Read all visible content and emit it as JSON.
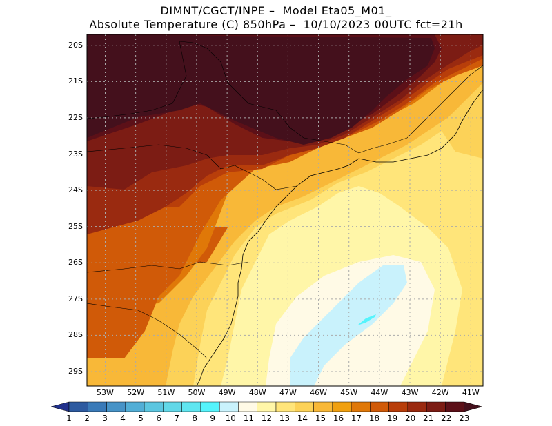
{
  "header": {
    "line1": "DIMNT/CGCT/INPE –  Model Eta05_M01_",
    "line2": "Absolute Temperature (C) 850hPa –  10/10/2023 00UTC fct=21h"
  },
  "map": {
    "lat_labels": [
      "20S",
      "21S",
      "22S",
      "23S",
      "24S",
      "25S",
      "26S",
      "27S",
      "28S",
      "29S"
    ],
    "lon_labels": [
      "53W",
      "52W",
      "51W",
      "50W",
      "49W",
      "48W",
      "47W",
      "46W",
      "45W",
      "44W",
      "43W",
      "42W",
      "41W"
    ],
    "lon_range": [
      -53.6,
      -40.6
    ],
    "lat_range": [
      -29.4,
      -19.7
    ],
    "grid": true,
    "field_range_c": [
      10,
      23
    ]
  },
  "colorbar": {
    "labels": [
      "1",
      "2",
      "3",
      "4",
      "5",
      "6",
      "7",
      "8",
      "9",
      "10",
      "11",
      "12",
      "13",
      "14",
      "15",
      "16",
      "17",
      "18",
      "19",
      "20",
      "21",
      "22",
      "23"
    ],
    "colors": [
      "#21318c",
      "#2d5aa0",
      "#3a7ab8",
      "#4793c7",
      "#52aed6",
      "#5cc6e0",
      "#62d8e8",
      "#5fe6f0",
      "#55f4fc",
      "#c9f2fc",
      "#fffae6",
      "#fff6a8",
      "#ffe57a",
      "#fcd258",
      "#f8b838",
      "#f0a010",
      "#e07808",
      "#d05a08",
      "#b83e0a",
      "#9a2a10",
      "#7c1c14",
      "#5c1018",
      "#44101c"
    ]
  }
}
